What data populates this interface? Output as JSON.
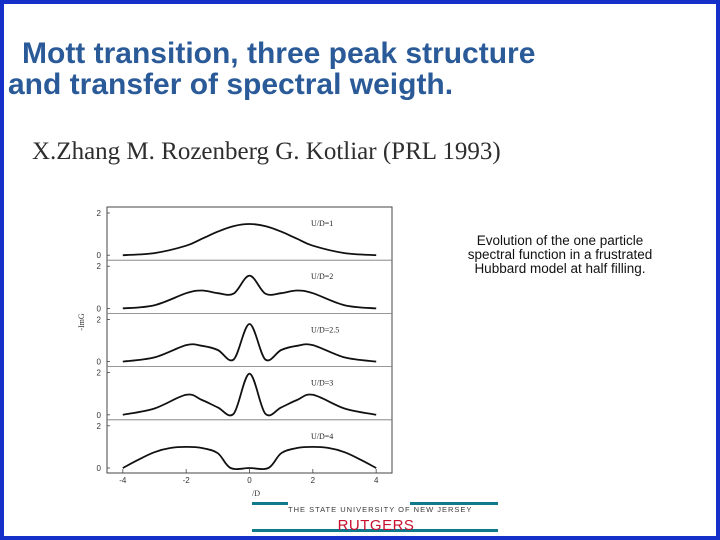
{
  "slide": {
    "title_line1": "Mott transition,  three peak structure",
    "title_line2": "and transfer of spectral weigth.",
    "reference": "X.Zhang M. Rozenberg G. Kotliar (PRL 1993)",
    "caption": "Evolution of the one particle spectral function in a frustrated Hubbard model at half filling.",
    "logo_small": "THE STATE UNIVERSITY OF NEW JERSEY",
    "logo_big": "RUTGERS",
    "logo_color": "#c8102e",
    "title_color": "#2a5a98",
    "border_color": "#1530c8"
  },
  "chart_data": {
    "type": "line",
    "ylabel": "-ImG",
    "xlabel": "/D",
    "xlim": [
      -4.5,
      4.5
    ],
    "x_ticks": [
      "-4",
      "-2",
      "0",
      "2",
      "4"
    ],
    "x_tick_values": [
      -4,
      -2,
      0,
      2,
      4
    ],
    "panels": [
      {
        "label": "U/D=1",
        "ylim": [
          0,
          2
        ],
        "y_ticks": [
          "2",
          "0"
        ],
        "series": [
          {
            "x": [
              -4.0,
              -3.0,
              -2.0,
              -1.5,
              -1.0,
              -0.5,
              0.0,
              0.5,
              1.0,
              1.5,
              2.0,
              3.0,
              4.0
            ],
            "y": [
              0.0,
              0.1,
              0.45,
              0.78,
              1.12,
              1.38,
              1.48,
              1.38,
              1.12,
              0.78,
              0.45,
              0.1,
              0.0
            ]
          }
        ]
      },
      {
        "label": "U/D=2",
        "ylim": [
          0,
          2
        ],
        "y_ticks": [
          "2",
          "0"
        ],
        "series": [
          {
            "x": [
              -4.0,
              -3.0,
              -2.0,
              -1.5,
              -1.0,
              -0.5,
              0.0,
              0.5,
              1.0,
              1.5,
              2.0,
              3.0,
              4.0
            ],
            "y": [
              0.0,
              0.15,
              0.72,
              0.85,
              0.72,
              0.7,
              1.55,
              0.7,
              0.72,
              0.85,
              0.72,
              0.15,
              0.0
            ]
          }
        ]
      },
      {
        "label": "U/D=2.5",
        "ylim": [
          0,
          2
        ],
        "y_ticks": [
          "2",
          "0"
        ],
        "series": [
          {
            "x": [
              -4.0,
              -3.0,
              -2.0,
              -1.5,
              -1.0,
              -0.5,
              0.0,
              0.5,
              1.0,
              1.5,
              2.0,
              3.0,
              4.0
            ],
            "y": [
              0.0,
              0.2,
              0.78,
              0.75,
              0.55,
              0.1,
              1.78,
              0.1,
              0.55,
              0.75,
              0.78,
              0.2,
              0.0
            ]
          }
        ]
      },
      {
        "label": "U/D=3",
        "ylim": [
          0,
          2
        ],
        "y_ticks": [
          "2",
          "0"
        ],
        "series": [
          {
            "x": [
              -4.0,
              -3.0,
              -2.0,
              -1.5,
              -1.0,
              -0.5,
              0.0,
              0.5,
              1.0,
              1.5,
              2.0,
              3.0,
              4.0
            ],
            "y": [
              0.0,
              0.3,
              0.95,
              0.7,
              0.35,
              0.05,
              1.95,
              0.05,
              0.35,
              0.7,
              0.95,
              0.3,
              0.0
            ]
          }
        ]
      },
      {
        "label": "U/D=4",
        "ylim": [
          0,
          2
        ],
        "y_ticks": [
          "2",
          "0"
        ],
        "series": [
          {
            "x": [
              -4.0,
              -3.5,
              -3.0,
              -2.5,
              -2.0,
              -1.5,
              -1.0,
              -0.6,
              0.0,
              0.6,
              1.0,
              1.5,
              2.0,
              2.5,
              3.0,
              3.5,
              4.0
            ],
            "y": [
              0.0,
              0.4,
              0.75,
              0.95,
              1.0,
              0.95,
              0.7,
              0.0,
              0.0,
              0.0,
              0.7,
              0.95,
              1.0,
              0.95,
              0.75,
              0.4,
              0.0
            ]
          }
        ]
      }
    ]
  }
}
